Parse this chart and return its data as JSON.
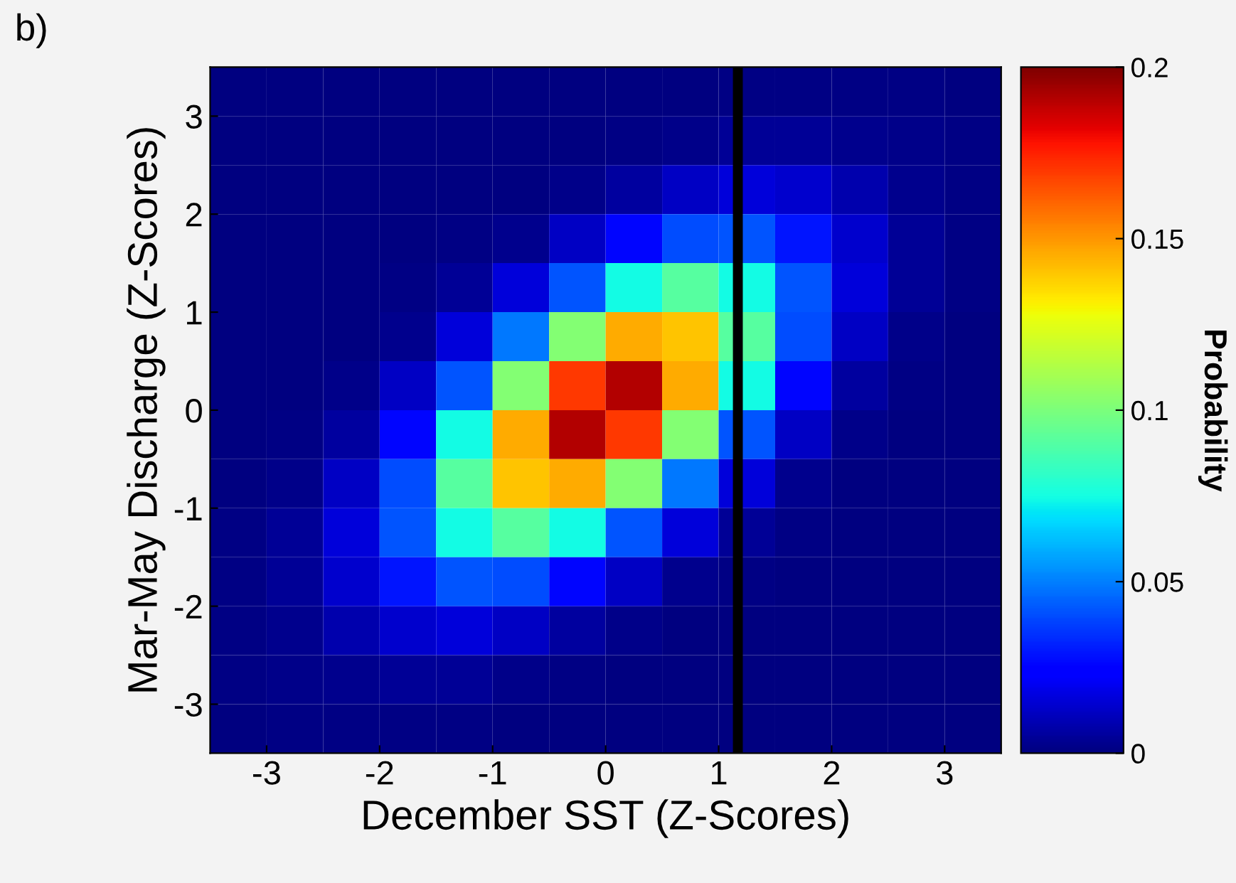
{
  "chart_data": {
    "type": "heatmap",
    "annotations": [
      "b)"
    ],
    "xlabel": "December SST (Z-Scores)",
    "ylabel": "Mar-May Discharge (Z-Scores)",
    "clabel": "Probability",
    "xlim": [
      -3.5,
      3.5
    ],
    "ylim": [
      -3.5,
      3.5
    ],
    "xticks": [
      -3,
      -2,
      -1,
      0,
      1,
      2,
      3
    ],
    "yticks": [
      -3,
      -2,
      -1,
      0,
      1,
      2,
      3
    ],
    "clim": [
      0,
      0.2
    ],
    "cticks": [
      0,
      0.05,
      0.1,
      0.15,
      0.2
    ],
    "cells": [
      [
        0,
        0,
        0,
        0,
        0,
        0,
        0,
        0,
        0,
        0.001,
        0.001,
        0.001,
        0.001,
        0
      ],
      [
        0,
        0,
        0,
        0,
        0,
        0,
        0,
        0.001,
        0.002,
        0.004,
        0.004,
        0.003,
        0.002,
        0.001
      ],
      [
        0,
        0,
        0,
        0,
        0,
        0,
        0.002,
        0.006,
        0.012,
        0.016,
        0.014,
        0.008,
        0.003,
        0.001
      ],
      [
        0,
        0,
        0,
        0,
        0.001,
        0.003,
        0.012,
        0.026,
        0.04,
        0.042,
        0.029,
        0.014,
        0.004,
        0.001
      ],
      [
        0,
        0,
        0,
        0.001,
        0.004,
        0.016,
        0.042,
        0.075,
        0.091,
        0.075,
        0.042,
        0.016,
        0.004,
        0.001
      ],
      [
        0,
        0,
        0,
        0.003,
        0.016,
        0.049,
        0.102,
        0.146,
        0.14,
        0.091,
        0.04,
        0.012,
        0.002,
        0
      ],
      [
        0,
        0,
        0.002,
        0.012,
        0.042,
        0.102,
        0.17,
        0.191,
        0.146,
        0.075,
        0.026,
        0.006,
        0.001,
        0
      ],
      [
        0,
        0.001,
        0.006,
        0.026,
        0.075,
        0.146,
        0.191,
        0.17,
        0.102,
        0.042,
        0.012,
        0.002,
        0,
        0
      ],
      [
        0,
        0.002,
        0.012,
        0.04,
        0.091,
        0.14,
        0.146,
        0.102,
        0.049,
        0.016,
        0.003,
        0,
        0,
        0
      ],
      [
        0.001,
        0.004,
        0.016,
        0.042,
        0.075,
        0.091,
        0.075,
        0.042,
        0.016,
        0.004,
        0.001,
        0,
        0,
        0
      ],
      [
        0.001,
        0.004,
        0.014,
        0.029,
        0.042,
        0.04,
        0.026,
        0.012,
        0.003,
        0.001,
        0,
        0,
        0,
        0
      ],
      [
        0.001,
        0.003,
        0.008,
        0.014,
        0.016,
        0.012,
        0.006,
        0.002,
        0,
        0,
        0,
        0,
        0,
        0
      ],
      [
        0.001,
        0.002,
        0.003,
        0.004,
        0.004,
        0.002,
        0.001,
        0,
        0,
        0,
        0,
        0,
        0,
        0
      ],
      [
        0,
        0.001,
        0.001,
        0.001,
        0.001,
        0,
        0,
        0,
        0,
        0,
        0,
        0,
        0,
        0
      ]
    ],
    "ref_lines": [
      {
        "axis": "x",
        "value": 1.17,
        "color": "#000000"
      }
    ]
  }
}
